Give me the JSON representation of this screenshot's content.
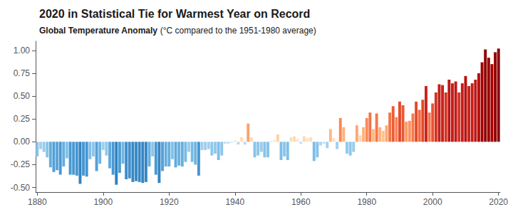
{
  "chart_data": {
    "type": "bar",
    "title": "2020 in Statistical Tie for Warmest Year on Record",
    "subtitle": [
      "Global Temperature Anomaly",
      " (°C compared to the 1951-1980 average)"
    ],
    "x": [
      1880,
      1881,
      1882,
      1883,
      1884,
      1885,
      1886,
      1887,
      1888,
      1889,
      1890,
      1891,
      1892,
      1893,
      1894,
      1895,
      1896,
      1897,
      1898,
      1899,
      1900,
      1901,
      1902,
      1903,
      1904,
      1905,
      1906,
      1907,
      1908,
      1909,
      1910,
      1911,
      1912,
      1913,
      1914,
      1915,
      1916,
      1917,
      1918,
      1919,
      1920,
      1921,
      1922,
      1923,
      1924,
      1925,
      1926,
      1927,
      1928,
      1929,
      1930,
      1931,
      1932,
      1933,
      1934,
      1935,
      1936,
      1937,
      1938,
      1939,
      1940,
      1941,
      1942,
      1943,
      1944,
      1945,
      1946,
      1947,
      1948,
      1949,
      1950,
      1951,
      1952,
      1953,
      1954,
      1955,
      1956,
      1957,
      1958,
      1959,
      1960,
      1961,
      1962,
      1963,
      1964,
      1965,
      1966,
      1967,
      1968,
      1969,
      1970,
      1971,
      1972,
      1973,
      1974,
      1975,
      1976,
      1977,
      1978,
      1979,
      1980,
      1981,
      1982,
      1983,
      1984,
      1985,
      1986,
      1987,
      1988,
      1989,
      1990,
      1991,
      1992,
      1993,
      1994,
      1995,
      1996,
      1997,
      1998,
      1999,
      2000,
      2001,
      2002,
      2003,
      2004,
      2005,
      2006,
      2007,
      2008,
      2009,
      2010,
      2011,
      2012,
      2013,
      2014,
      2015,
      2016,
      2017,
      2018,
      2019,
      2020
    ],
    "values": [
      -0.16,
      -0.08,
      -0.11,
      -0.17,
      -0.28,
      -0.33,
      -0.31,
      -0.36,
      -0.27,
      -0.18,
      -0.36,
      -0.36,
      -0.37,
      -0.46,
      -0.37,
      -0.38,
      -0.19,
      -0.16,
      -0.32,
      -0.24,
      -0.09,
      -0.15,
      -0.29,
      -0.36,
      -0.47,
      -0.34,
      -0.24,
      -0.41,
      -0.4,
      -0.44,
      -0.43,
      -0.44,
      -0.45,
      -0.44,
      -0.27,
      -0.16,
      -0.36,
      -0.45,
      -0.32,
      -0.27,
      -0.27,
      -0.19,
      -0.28,
      -0.26,
      -0.27,
      -0.22,
      -0.11,
      -0.22,
      -0.25,
      -0.37,
      -0.09,
      -0.09,
      -0.08,
      -0.15,
      -0.13,
      -0.2,
      -0.15,
      -0.02,
      -0.02,
      -0.01,
      0.02,
      -0.03,
      0.05,
      -0.03,
      0.2,
      0.05,
      -0.17,
      -0.15,
      -0.11,
      -0.17,
      -0.17,
      0.01,
      0.02,
      0.08,
      -0.2,
      -0.16,
      -0.2,
      0.05,
      0.06,
      0.03,
      -0.02,
      0.06,
      0.04,
      0.05,
      -0.21,
      -0.17,
      -0.04,
      -0.02,
      -0.07,
      0.14,
      0.04,
      -0.08,
      0.26,
      0.16,
      -0.13,
      -0.15,
      -0.11,
      0.18,
      0.07,
      0.16,
      0.26,
      0.32,
      0.14,
      0.31,
      0.16,
      0.12,
      0.18,
      0.32,
      0.39,
      0.27,
      0.44,
      0.4,
      0.22,
      0.23,
      0.31,
      0.44,
      0.35,
      0.46,
      0.61,
      0.32,
      0.42,
      0.54,
      0.63,
      0.62,
      0.54,
      0.68,
      0.64,
      0.66,
      0.54,
      0.64,
      0.72,
      0.61,
      0.64,
      0.68,
      0.75,
      0.87,
      1.01,
      0.92,
      0.85,
      0.98,
      1.02
    ],
    "colors": [
      "#8ac5ea",
      "#a1d0ee",
      "#98cced",
      "#87c3ea",
      "#62abdd",
      "#519fd7",
      "#58a4d9",
      "#4898d2",
      "#66aedf",
      "#84c2e9",
      "#4898d2",
      "#4898d2",
      "#4696d1",
      "#3383c1",
      "#4696d1",
      "#4494cf",
      "#81c0e9",
      "#8ac5ea",
      "#54a1d8",
      "#70b5e3",
      "#9eceee",
      "#8dc6eb",
      "#5fa9dc",
      "#4898d2",
      "#3181bf",
      "#4d9cd5",
      "#70b5e3",
      "#3e8eca",
      "#4090cb",
      "#3787c4",
      "#3989c6",
      "#3787c4",
      "#3585c3",
      "#3787c4",
      "#66aedf",
      "#8ac5ea",
      "#4898d2",
      "#3585c3",
      "#54a1d8",
      "#66aedf",
      "#66aedf",
      "#81c0e9",
      "#62abdd",
      "#69b0e0",
      "#66aedf",
      "#77bae5",
      "#98cced",
      "#77bae5",
      "#6db3e1",
      "#4696d1",
      "#9eceee",
      "#9eceee",
      "#a1d0ee",
      "#8dc6eb",
      "#93c9ec",
      "#7ebfe8",
      "#8dc6eb",
      "#bcdef3",
      "#bcdef3",
      "#c2e1f4",
      "#fde8cf",
      "#b6daf2",
      "#fdddba",
      "#b6daf2",
      "#fca16d",
      "#fdddba",
      "#87c3ea",
      "#8dc6eb",
      "#98cced",
      "#87c3ea",
      "#87c3ea",
      "#e3e6e2",
      "#fde8cf",
      "#fdd2a4",
      "#7ebfe8",
      "#8ac5ea",
      "#7ebfe8",
      "#fdddba",
      "#fddab3",
      "#fde4c8",
      "#bcdef3",
      "#fddab3",
      "#fde1c1",
      "#fdddba",
      "#7bbde7",
      "#87c3ea",
      "#b0d7f1",
      "#bcdef3",
      "#a4d1ef",
      "#fdba86",
      "#fde1c1",
      "#a1d0ee",
      "#fb8957",
      "#fdb27e",
      "#93c9ec",
      "#8dc6eb",
      "#98cced",
      "#fca975",
      "#fdd6ab",
      "#fdb27e",
      "#fb8957",
      "#f37448",
      "#fdba86",
      "#f5784b",
      "#fdb27e",
      "#fdc38e",
      "#fca975",
      "#f37448",
      "#eb5c37",
      "#fa8554",
      "#e44b2b",
      "#e95935",
      "#fc9965",
      "#fc9461",
      "#f5784b",
      "#e44b2b",
      "#f06a41",
      "#e14628",
      "#c8241c",
      "#f37448",
      "#e75230",
      "#d43422",
      "#c4201b",
      "#c6221b",
      "#d43422",
      "#bd1715",
      "#c31d1a",
      "#c01a18",
      "#d43422",
      "#c31d1a",
      "#b81210",
      "#c8241c",
      "#c31d1a",
      "#bd1715",
      "#b50e0d",
      "#a50000",
      "#8d0000",
      "#9c0000",
      "#a80000",
      "#920000",
      "#8b0000"
    ],
    "xlim": [
      1879.5,
      2020.5
    ],
    "xticks": [
      1880,
      1900,
      1920,
      1940,
      1960,
      1980,
      2000,
      2020
    ],
    "ylim": [
      -0.55,
      1.1
    ],
    "yticks": [
      {
        "value": -0.5,
        "label": "-0.50"
      },
      {
        "value": -0.25,
        "label": "-0.25"
      },
      {
        "value": 0,
        "label": "0.00"
      },
      {
        "value": 0.25,
        "label": "0.25"
      },
      {
        "value": 0.5,
        "label": "0.50"
      },
      {
        "value": 0.75,
        "label": "0.75"
      },
      {
        "value": 1,
        "label": "1.00"
      }
    ],
    "grid": false
  }
}
